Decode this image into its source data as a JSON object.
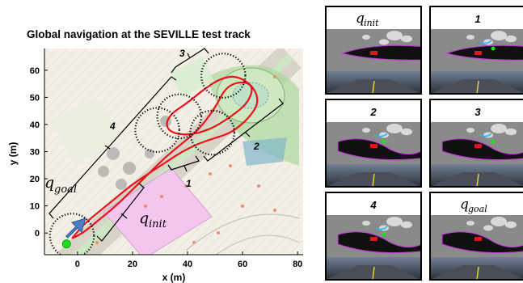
{
  "figure": {
    "title": "Global navigation at the SEVILLE test track",
    "xlabel": "x (m)",
    "ylabel": "y (m)",
    "xticks": [
      "0",
      "20",
      "40",
      "60",
      "80"
    ],
    "yticks": [
      "0",
      "10",
      "20",
      "30",
      "40",
      "50",
      "60"
    ],
    "segments": [
      "1",
      "2",
      "3",
      "4"
    ],
    "q_init": {
      "main": "q",
      "sub": "init"
    },
    "q_goal": {
      "main": "q",
      "sub": "goal"
    }
  },
  "panels": [
    {
      "kind": "q",
      "main": "q",
      "sub": "init"
    },
    {
      "kind": "num",
      "label": "1"
    },
    {
      "kind": "num",
      "label": "2"
    },
    {
      "kind": "num",
      "label": "3"
    },
    {
      "kind": "num",
      "label": "4"
    },
    {
      "kind": "q",
      "main": "q",
      "sub": "goal"
    }
  ],
  "colors": {
    "path": "#e8141a",
    "robot_arrow": "#4f7fbf",
    "goal_marker": "#22dd22",
    "zone": "#f4c6ef",
    "vegetation": "#a7d59a"
  },
  "chart_data": {
    "type": "line",
    "title": "Global navigation at the SEVILLE test track",
    "xlabel": "x (m)",
    "ylabel": "y (m)",
    "xlim": [
      -12,
      82
    ],
    "ylim": [
      -8,
      68
    ],
    "xticks": [
      0,
      20,
      40,
      60,
      80
    ],
    "yticks": [
      0,
      10,
      20,
      30,
      40,
      50,
      60
    ],
    "grid": false,
    "series": [
      {
        "x": [
          -2,
          2,
          8,
          14,
          20,
          26,
          32,
          38,
          44,
          50,
          56,
          62,
          66,
          64,
          58,
          52,
          46,
          40,
          34,
          32,
          34,
          40,
          48,
          56,
          62,
          64,
          60,
          54,
          50,
          44,
          38,
          32,
          26,
          20,
          14,
          8,
          2,
          -2
        ],
        "y": [
          -2,
          3,
          8,
          13,
          18,
          22,
          26,
          30,
          33,
          35,
          37,
          42,
          48,
          54,
          58,
          57,
          53,
          48,
          44,
          40,
          37,
          36,
          38,
          43,
          48,
          54,
          56,
          54,
          46,
          38,
          33,
          28,
          22,
          16,
          10,
          5,
          0,
          -2
        ]
      }
    ],
    "circles": [
      {
        "label": "q_goal",
        "cx": -2,
        "cy": -1,
        "r": 8
      },
      {
        "label": "1",
        "cx": 29,
        "cy": 38,
        "r": 8
      },
      {
        "label": "2",
        "cx": 49,
        "cy": 37,
        "r": 8
      },
      {
        "label": "3",
        "cx": 53,
        "cy": 58,
        "r": 8
      },
      {
        "label": "4",
        "cx": 37,
        "cy": 43,
        "r": 8
      }
    ],
    "markers": [
      {
        "label": "robot",
        "x": 0,
        "y": 3
      },
      {
        "label": "goal",
        "x": -4,
        "y": -4
      }
    ]
  }
}
